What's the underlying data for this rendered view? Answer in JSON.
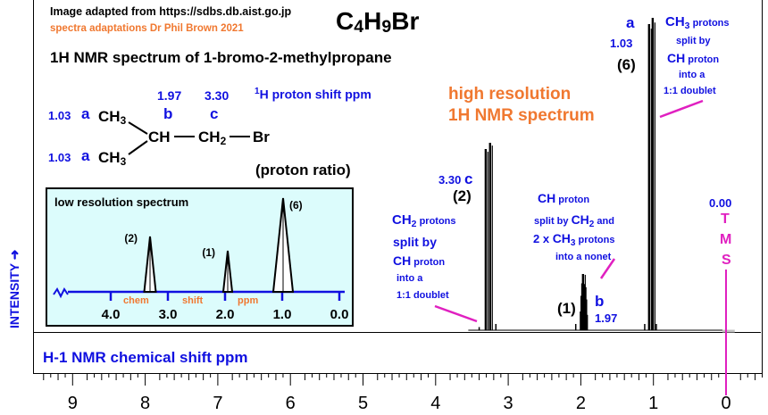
{
  "credits": {
    "source": "Image adapted from https://sdbs.db.aist.go.jp",
    "adaptation": "spectra adaptations Dr Phil Brown 2021"
  },
  "formula": {
    "c": "C",
    "c_n": "4",
    "h": "H",
    "h_n": "9",
    "br": "Br"
  },
  "title": "1H NMR spectrum of 1-bromo-2-methylpropane",
  "subtitle_line1": "high resolution",
  "subtitle_line2": "1H NMR spectrum",
  "structure": {
    "header_shift_b": "1.97",
    "header_shift_c": "3.30",
    "header_label_h": "1",
    "header_label_rest": "H proton shift  ppm",
    "label_b": "b",
    "label_c": "c",
    "top_methyl_shift": "1.03",
    "bottom_methyl_shift": "1.03",
    "label_a_top": "a",
    "label_a_bottom": "a",
    "ch3_top": "CH",
    "ch3_bottom": "CH",
    "ch3_sub": "3",
    "ch": "CH",
    "ch2": "CH",
    "ch2_sub": "2",
    "br": "Br",
    "ratio_note": "(proton ratio)"
  },
  "inset": {
    "title": "low resolution spectrum",
    "axis_word_chem": "chem",
    "axis_word_shift": "shift",
    "axis_word_ppm": "ppm",
    "tick_labels": [
      "4.0",
      "3.0",
      "2.0",
      "1.0",
      "0.0"
    ],
    "peak_labels": [
      "(2)",
      "(1)",
      "(6)"
    ]
  },
  "annotations": {
    "c_shift": "3.30",
    "c_letter": "c",
    "c_ratio": "(2)",
    "c_desc": {
      "l1_main": "CH",
      "l1_sub": "2",
      "l1_rest": " protons",
      "l2": "split by",
      "l3_main": "CH",
      "l3_rest": " proton",
      "l4": "into a",
      "l5": "1:1 doublet"
    },
    "b_ratio": "(1)",
    "b_letter": "b",
    "b_shift": "1.97",
    "b_desc": {
      "l1_main": "CH",
      "l1_rest": " proton",
      "l2_pre": "split by ",
      "l2_main": "CH",
      "l2_sub": "2",
      "l2_rest": " and",
      "l3_pre": "2 x ",
      "l3_main": "CH",
      "l3_sub": "3",
      "l3_rest": " protons",
      "l4": "into a  nonet"
    },
    "a_letter": "a",
    "a_shift": "1.03",
    "a_ratio": "(6)",
    "a_desc": {
      "l1_main": "CH",
      "l1_sub": "3",
      "l1_rest": " protons",
      "l2": "split by",
      "l3_main": "CH",
      "l3_rest": " proton",
      "l4": "into a",
      "l5": "1:1 doublet"
    },
    "tms_shift": "0.00",
    "tms_letters": [
      "T",
      "M",
      "S"
    ]
  },
  "y_axis_label": "INTENSITY",
  "x_axis_label": "H-1 NMR chemical shift  ppm",
  "chart_data": [
    {
      "type": "line",
      "title": "1H NMR spectrum of 1-bromo-2-methylpropane",
      "xlabel": "H-1 NMR chemical shift  ppm",
      "ylabel": "INTENSITY",
      "xlim": [
        9.5,
        -0.5
      ],
      "x_ticks": [
        9,
        8,
        7,
        6,
        5,
        4,
        3,
        2,
        1,
        0
      ],
      "x_minor_step": 0.2,
      "ylim": [
        0,
        1
      ],
      "series": [
        {
          "peaks": [
            {
              "group": "c",
              "shift_ppm": 3.3,
              "ratio": 2,
              "multiplicity": "doublet",
              "lines": [
                [
                  3.31,
                  0.58
                ],
                [
                  3.25,
                  0.6
                ]
              ]
            },
            {
              "group": "b",
              "shift_ppm": 1.97,
              "ratio": 1,
              "multiplicity": "nonet",
              "lines": [
                [
                  2.0,
                  0.06
                ],
                [
                  1.99,
                  0.11
                ],
                [
                  1.98,
                  0.15
                ],
                [
                  1.97,
                  0.18
                ],
                [
                  1.96,
                  0.14
                ],
                [
                  1.95,
                  0.1
                ],
                [
                  1.94,
                  0.05
                ]
              ]
            },
            {
              "group": "a",
              "shift_ppm": 1.03,
              "ratio": 6,
              "multiplicity": "doublet",
              "lines": [
                [
                  1.06,
                  0.98
                ],
                [
                  1.01,
                  1.0
                ]
              ]
            },
            {
              "group": "TMS",
              "shift_ppm": 0.0,
              "ratio": 0,
              "multiplicity": "singlet",
              "lines": [
                [
                  0.0,
                  0.0
                ]
              ]
            }
          ]
        }
      ],
      "colors": {
        "trace": "#000000",
        "tms_marker": "#e020c0"
      }
    },
    {
      "type": "line",
      "title": "low resolution spectrum",
      "xlabel": "chem shift ppm",
      "xlim": [
        4.6,
        -0.2
      ],
      "x_ticks": [
        4.0,
        3.0,
        2.0,
        1.0,
        0.0
      ],
      "series": [
        {
          "peaks": [
            [
              3.3,
              2
            ],
            [
              1.97,
              1
            ],
            [
              1.03,
              6
            ]
          ]
        }
      ],
      "background": "#dcfcfc"
    }
  ]
}
